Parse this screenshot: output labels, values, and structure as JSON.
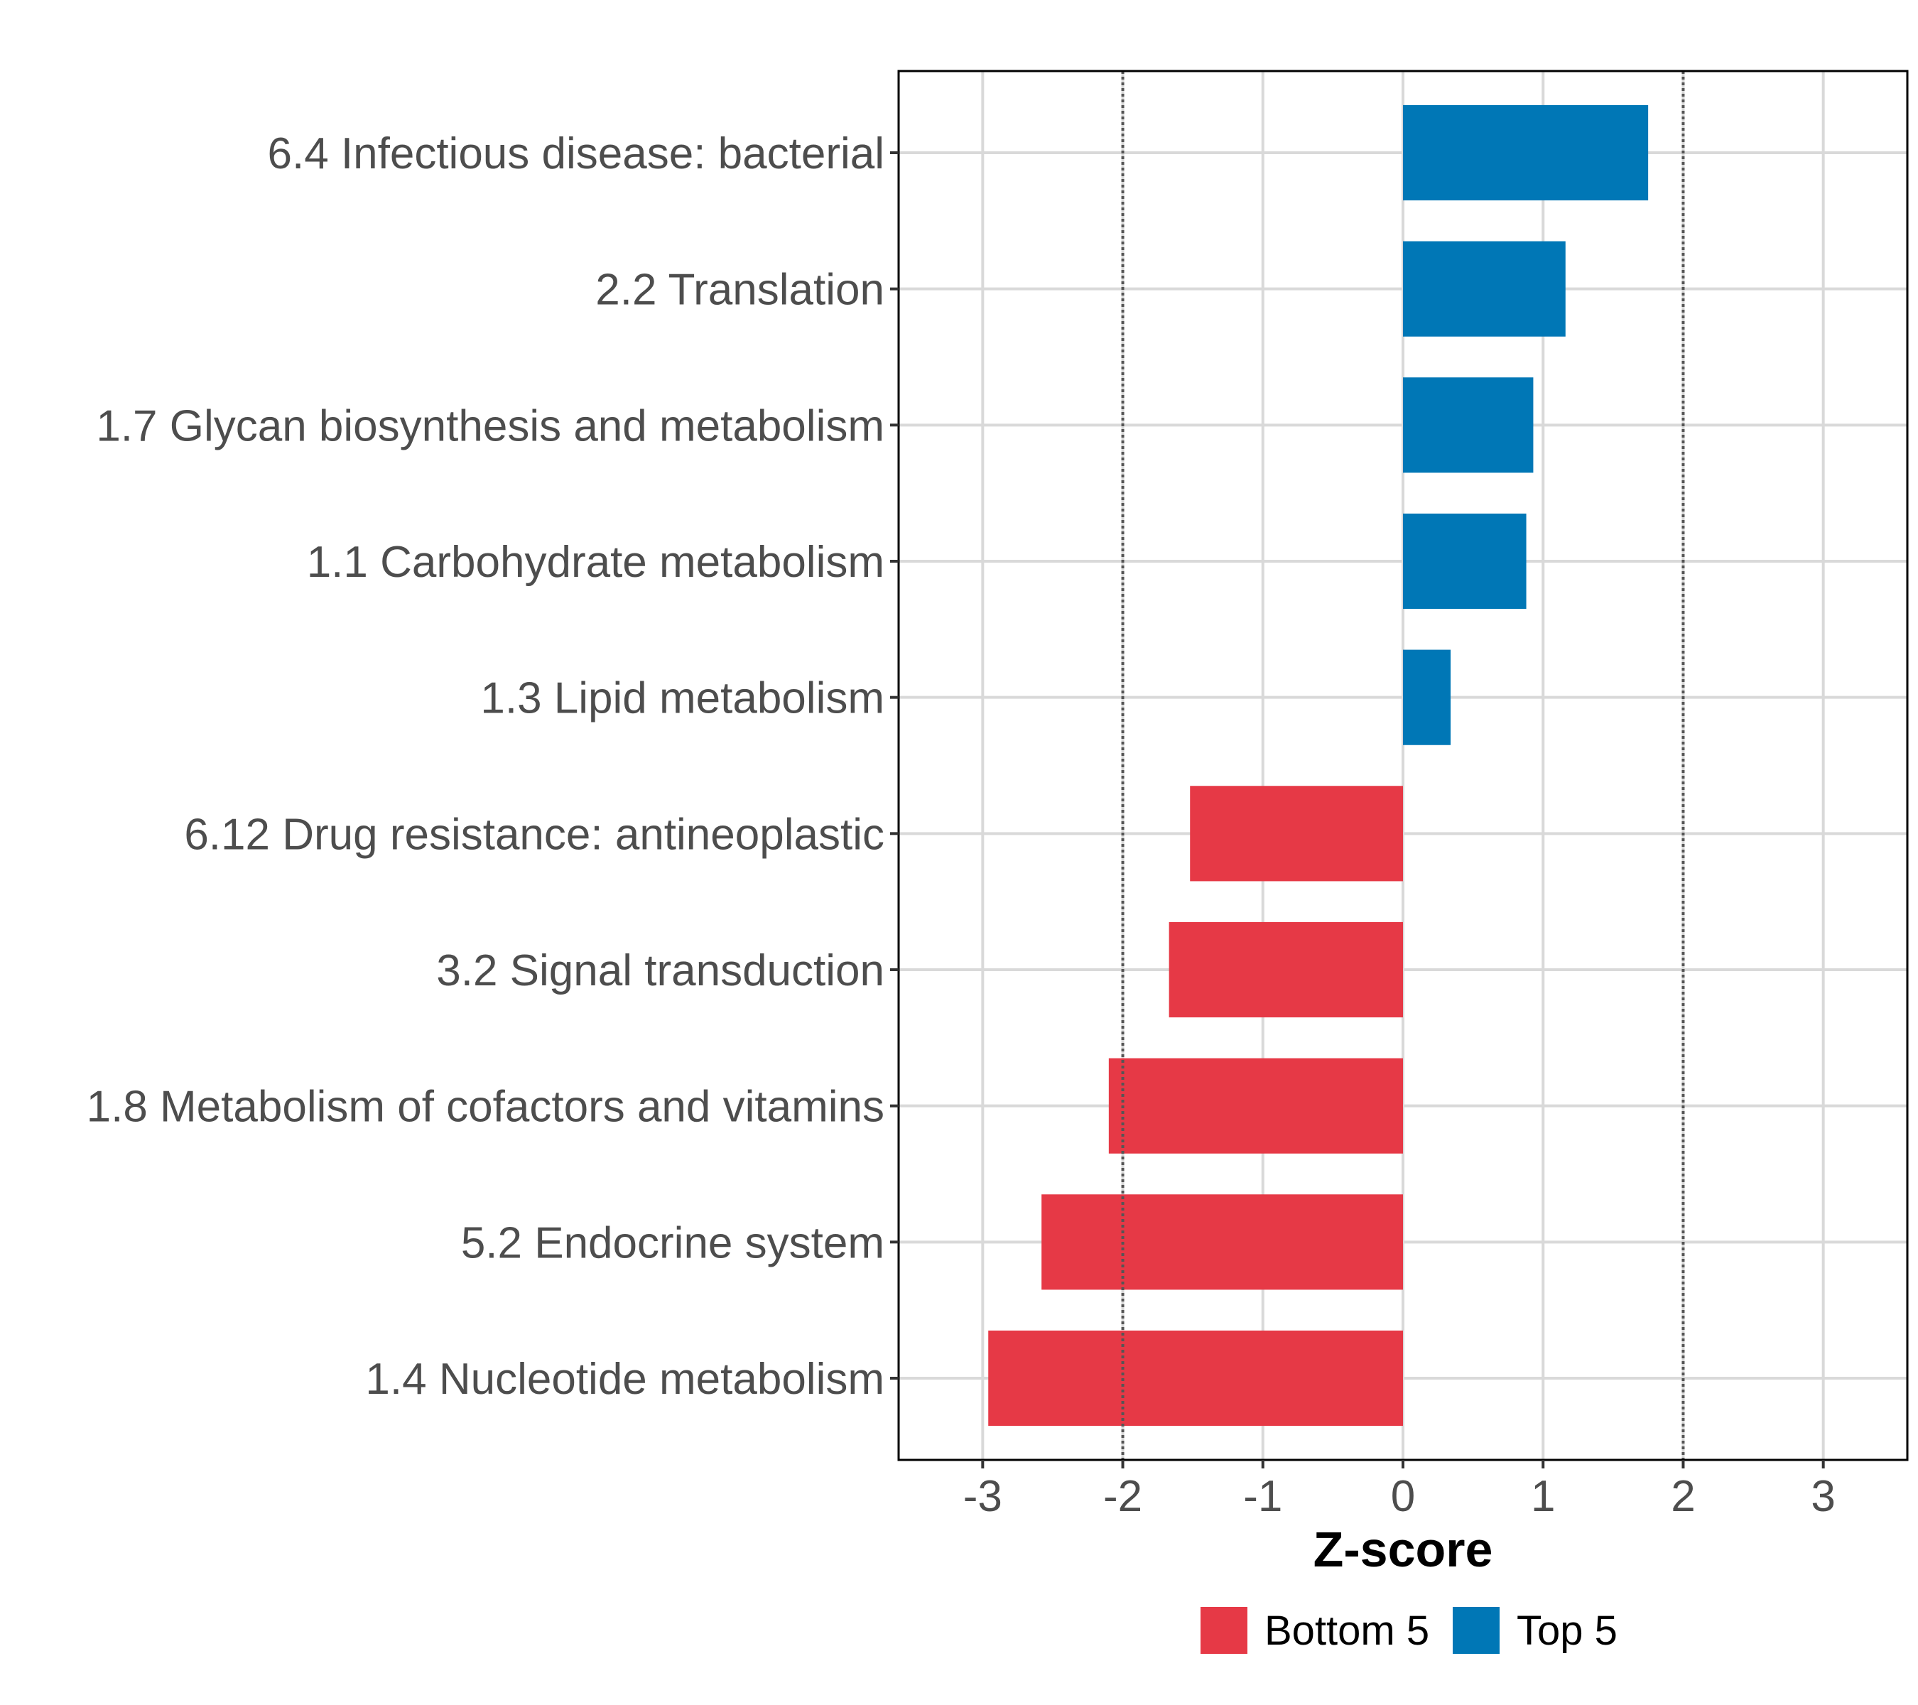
{
  "chart_data": {
    "type": "bar",
    "orientation": "horizontal",
    "categories": [
      "6.4 Infectious disease: bacterial",
      "2.2 Translation",
      "1.7 Glycan biosynthesis and metabolism",
      "1.1 Carbohydrate metabolism",
      "1.3 Lipid metabolism",
      "6.12 Drug resistance: antineoplastic",
      "3.2 Signal transduction",
      "1.8 Metabolism of cofactors and vitamins",
      "5.2 Endocrine system",
      "1.4 Nucleotide metabolism"
    ],
    "values": [
      1.75,
      1.16,
      0.93,
      0.88,
      0.34,
      -1.52,
      -1.67,
      -2.1,
      -2.58,
      -2.96
    ],
    "groups": [
      "Top 5",
      "Top 5",
      "Top 5",
      "Top 5",
      "Top 5",
      "Bottom 5",
      "Bottom 5",
      "Bottom 5",
      "Bottom 5",
      "Bottom 5"
    ],
    "colors": {
      "Top 5": "#0077b6",
      "Bottom 5": "#e63946"
    },
    "xlabel": "Z-score",
    "ylabel": "",
    "xlim": [
      -3.6,
      3.6
    ],
    "xticks": [
      -3,
      -2,
      -1,
      0,
      1,
      2,
      3
    ],
    "xtick_labels": [
      "-3",
      "-2",
      "-1",
      "0",
      "1",
      "2",
      "3"
    ],
    "reference_lines": [
      -2,
      2
    ],
    "grid": true,
    "legend": {
      "position": "bottom",
      "entries": [
        {
          "label": "Bottom 5",
          "color": "#e63946"
        },
        {
          "label": "Top 5",
          "color": "#0077b6"
        }
      ]
    }
  }
}
